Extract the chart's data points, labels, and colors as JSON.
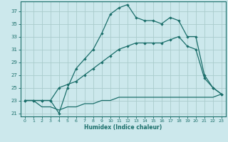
{
  "title": "",
  "xlabel": "Humidex (Indice chaleur)",
  "bg_color": "#cce8ec",
  "grid_color": "#aacccc",
  "line_color": "#1a6e6a",
  "xlim": [
    -0.5,
    23.5
  ],
  "ylim": [
    20.5,
    38.5
  ],
  "xticks": [
    0,
    1,
    2,
    3,
    4,
    5,
    6,
    7,
    8,
    9,
    10,
    11,
    12,
    13,
    14,
    15,
    16,
    17,
    18,
    19,
    20,
    21,
    22,
    23
  ],
  "yticks": [
    21,
    23,
    25,
    27,
    29,
    31,
    33,
    35,
    37
  ],
  "line1_x": [
    0,
    1,
    2,
    3,
    4,
    5,
    6,
    7,
    8,
    9,
    10,
    11,
    12,
    13,
    14,
    15,
    16,
    17,
    18,
    19,
    20,
    21,
    22,
    23
  ],
  "line1_y": [
    23,
    23,
    23,
    23,
    21,
    25,
    28,
    29.5,
    31,
    33.5,
    36.5,
    37.5,
    38,
    36,
    35.5,
    35.5,
    35,
    36,
    35.5,
    33,
    33,
    27,
    25,
    24
  ],
  "line2_x": [
    0,
    1,
    2,
    3,
    4,
    5,
    6,
    7,
    8,
    9,
    10,
    11,
    12,
    13,
    14,
    15,
    16,
    17,
    18,
    19,
    20,
    21,
    22,
    23
  ],
  "line2_y": [
    23,
    23,
    23,
    23,
    25,
    25.5,
    26,
    27,
    28,
    29,
    30,
    31,
    31.5,
    32,
    32,
    32,
    32,
    32.5,
    33,
    31.5,
    31,
    26.5,
    25,
    24
  ],
  "line3_x": [
    0,
    1,
    2,
    3,
    4,
    5,
    6,
    7,
    8,
    9,
    10,
    11,
    12,
    13,
    14,
    15,
    16,
    17,
    18,
    19,
    20,
    21,
    22,
    23
  ],
  "line3_y": [
    23,
    23,
    22,
    22,
    21.5,
    22,
    22,
    22.5,
    22.5,
    23,
    23,
    23.5,
    23.5,
    23.5,
    23.5,
    23.5,
    23.5,
    23.5,
    23.5,
    23.5,
    23.5,
    23.5,
    23.5,
    24
  ]
}
